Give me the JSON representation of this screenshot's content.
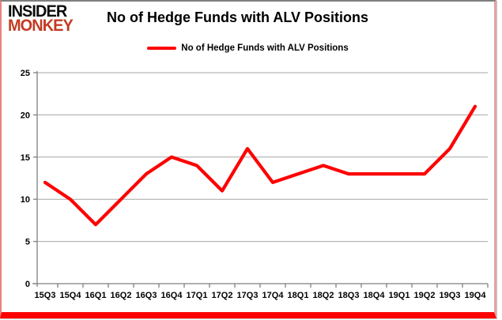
{
  "header": {
    "logo_line1": "INSIDER",
    "logo_line2": "MONKEY",
    "title": "No of Hedge Funds with ALV Positions"
  },
  "legend": {
    "label": "No of Hedge Funds with ALV Positions"
  },
  "colors": {
    "series_line": "#fe0101",
    "gridline": "#a6a6a6",
    "axis": "#808080",
    "logo_black": "#0d0d0d",
    "logo_red": "#c23b22",
    "border_top": "#7f7f7f",
    "border_sides_pink": "#ee8181",
    "border_bottom_red": "#fe0101"
  },
  "chart_data": {
    "type": "line",
    "title": "No of Hedge Funds with ALV Positions",
    "categories": [
      "15Q3",
      "15Q4",
      "16Q1",
      "16Q2",
      "16Q3",
      "16Q4",
      "17Q1",
      "17Q2",
      "17Q3",
      "17Q4",
      "18Q1",
      "18Q2",
      "18Q3",
      "18Q4",
      "19Q1",
      "19Q2",
      "19Q3",
      "19Q4"
    ],
    "values": [
      12,
      10,
      7,
      10,
      13,
      15,
      14,
      11,
      16,
      12,
      13,
      14,
      13,
      13,
      13,
      13,
      16,
      21
    ],
    "series_name": "No of Hedge Funds with ALV Positions",
    "xlabel": "",
    "ylabel": "",
    "ylim": [
      0,
      25
    ],
    "yticks": [
      0,
      5,
      10,
      15,
      20,
      25
    ],
    "grid": "horizontal",
    "legend_position": "top-center",
    "line_color": "#fe0101"
  }
}
